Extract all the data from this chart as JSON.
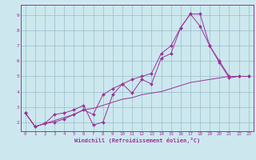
{
  "bg_color": "#cce8ee",
  "line_color": "#993399",
  "grid_color": "#99bbcc",
  "xlabel": "Windchill (Refroidissement éolien,°C)",
  "xlabel_color": "#993399",
  "tick_color": "#993399",
  "spine_color": "#993399",
  "xlim": [
    -0.5,
    23.5
  ],
  "ylim": [
    1.4,
    9.7
  ],
  "yticks": [
    2,
    3,
    4,
    5,
    6,
    7,
    8,
    9
  ],
  "xticks": [
    0,
    1,
    2,
    3,
    4,
    5,
    6,
    7,
    8,
    9,
    10,
    11,
    12,
    13,
    14,
    15,
    16,
    17,
    18,
    19,
    20,
    21,
    22,
    23
  ],
  "line1_x": [
    0,
    1,
    2,
    3,
    4,
    5,
    6,
    7,
    8,
    9,
    10,
    11,
    12,
    13,
    14,
    15,
    16,
    17,
    18,
    19,
    20,
    21,
    22,
    23
  ],
  "line1_y": [
    2.6,
    1.7,
    1.9,
    2.5,
    2.6,
    2.8,
    3.1,
    1.8,
    2.0,
    3.8,
    4.5,
    3.9,
    4.8,
    4.5,
    6.2,
    6.5,
    8.2,
    9.1,
    9.1,
    7.0,
    5.9,
    4.9,
    5.0,
    5.0
  ],
  "line2_x": [
    0,
    1,
    2,
    3,
    4,
    5,
    6,
    7,
    8,
    9,
    10,
    11,
    12,
    13,
    14,
    15,
    16,
    17,
    18,
    19,
    20,
    21,
    22,
    23
  ],
  "line2_y": [
    2.6,
    1.7,
    1.9,
    2.0,
    2.2,
    2.5,
    2.8,
    2.5,
    3.8,
    4.2,
    4.5,
    4.8,
    5.0,
    5.2,
    6.5,
    7.0,
    8.2,
    9.1,
    8.3,
    7.0,
    6.0,
    5.0,
    5.0,
    5.0
  ],
  "line3_x": [
    0,
    1,
    2,
    3,
    4,
    5,
    6,
    7,
    8,
    9,
    10,
    11,
    12,
    13,
    14,
    15,
    16,
    17,
    18,
    19,
    20,
    21,
    22,
    23
  ],
  "line3_y": [
    2.6,
    1.7,
    1.9,
    2.1,
    2.3,
    2.5,
    2.8,
    2.9,
    3.1,
    3.3,
    3.5,
    3.6,
    3.8,
    3.9,
    4.0,
    4.2,
    4.4,
    4.6,
    4.7,
    4.8,
    4.9,
    5.0,
    5.0,
    5.0
  ],
  "tick_fontsize": 4.2,
  "xlabel_fontsize": 5.0,
  "marker_size": 2.0,
  "linewidth": 0.7
}
